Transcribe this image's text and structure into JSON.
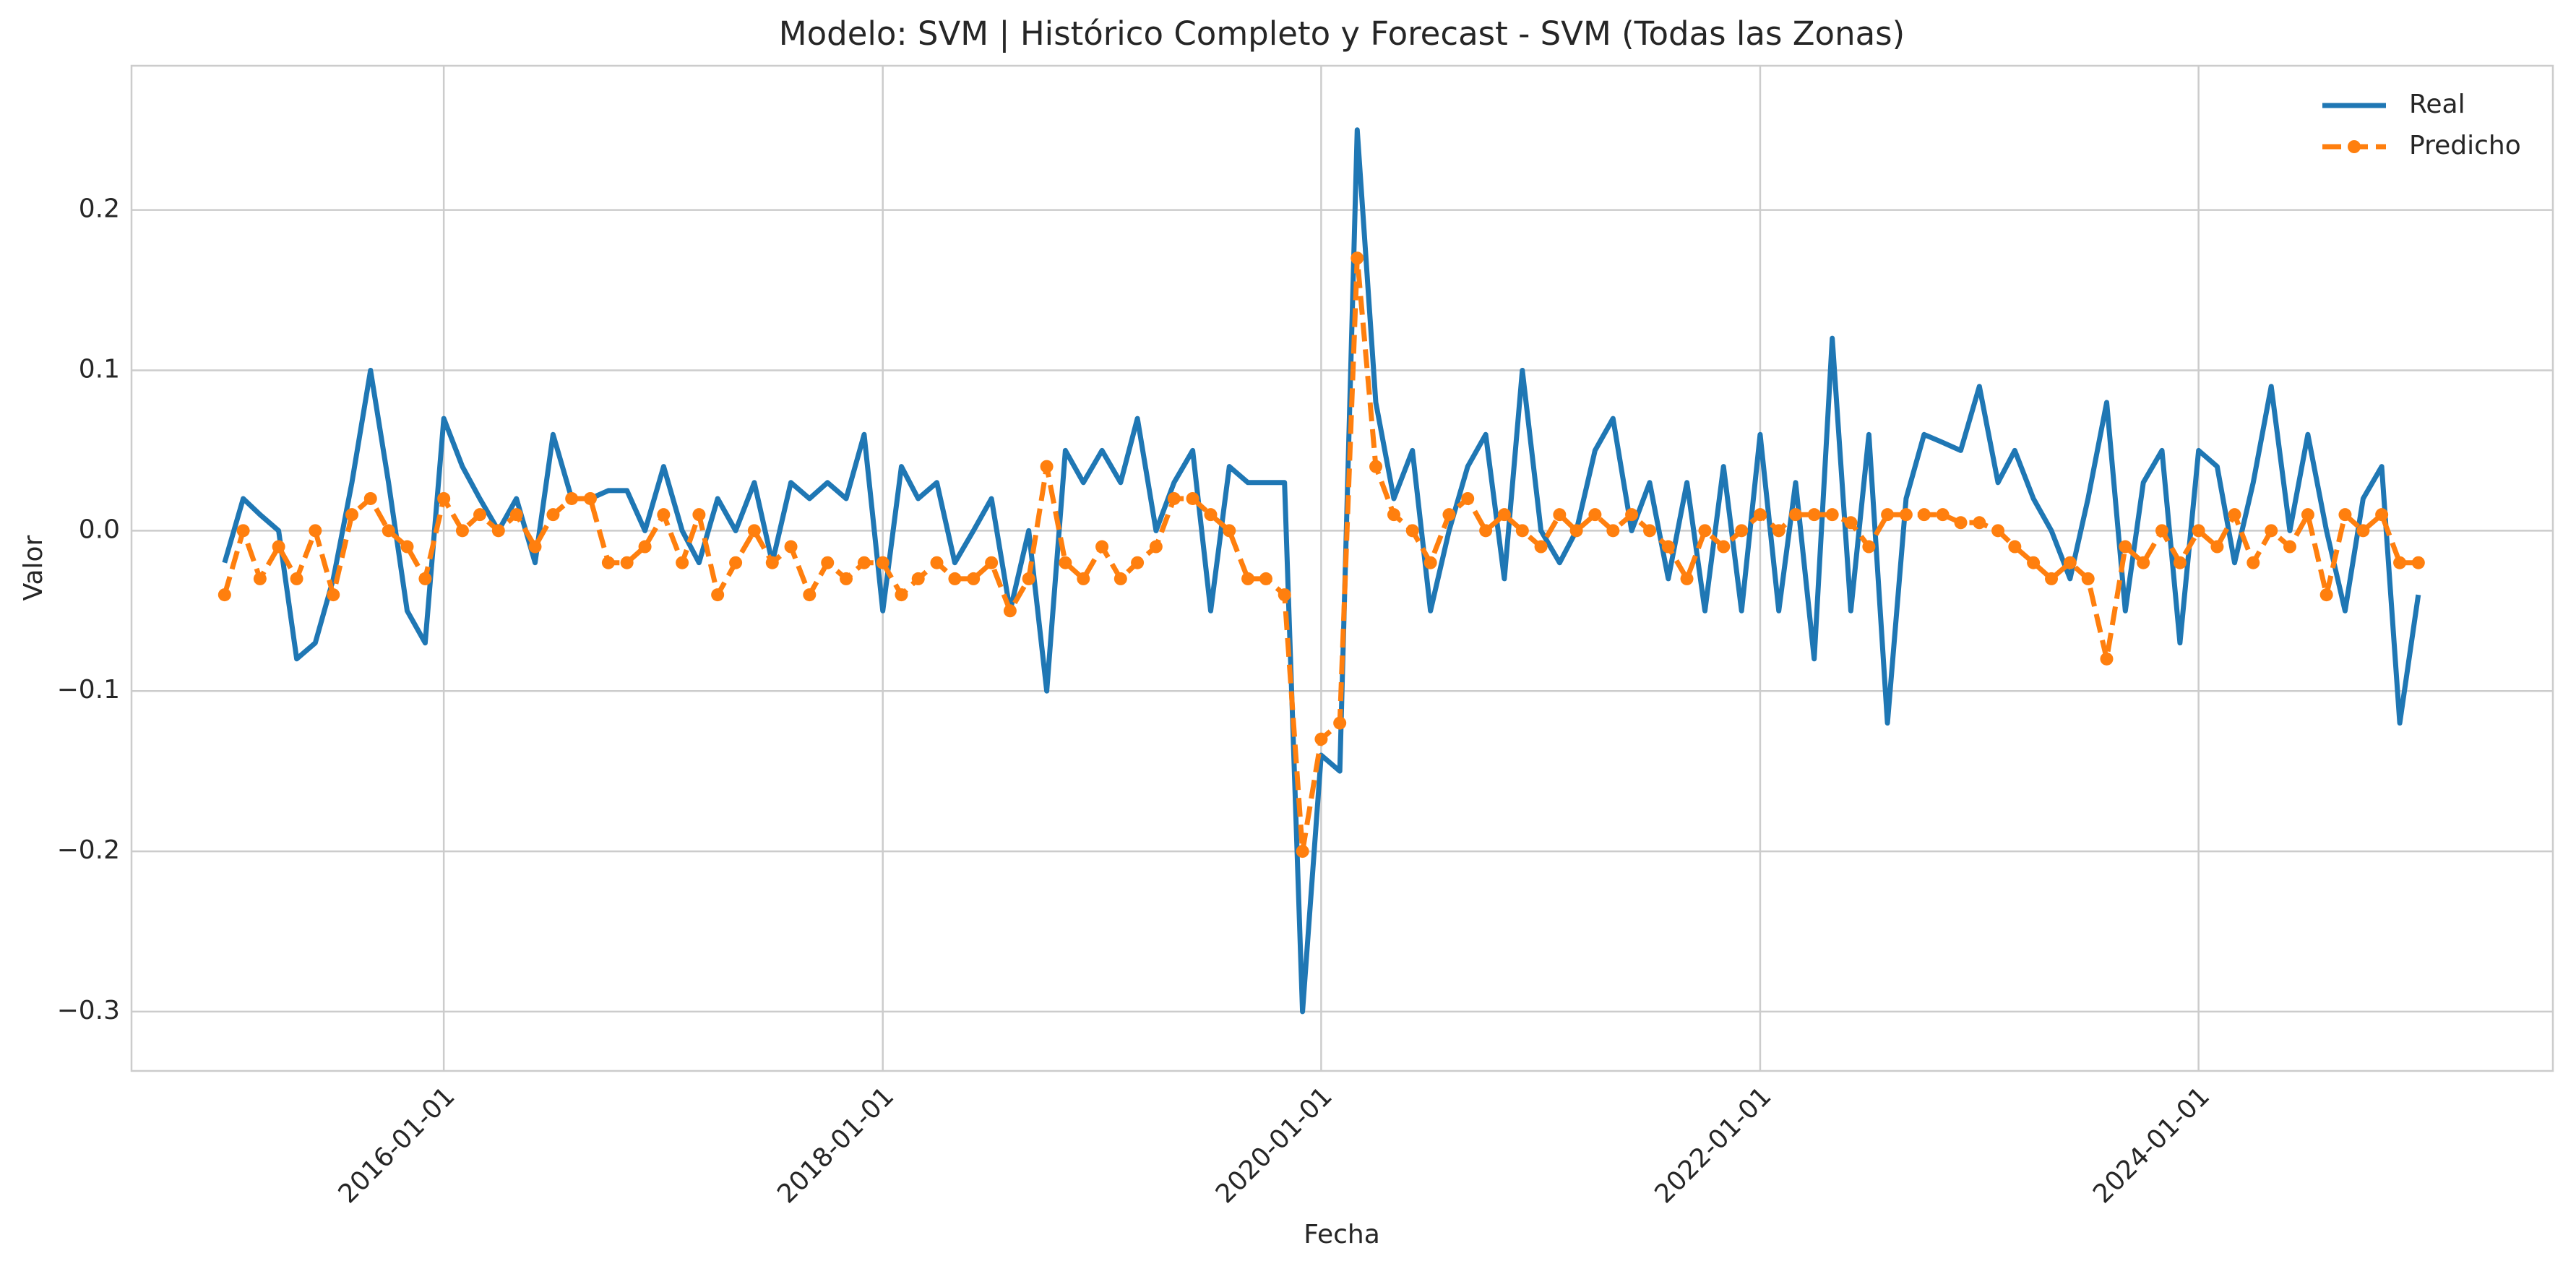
{
  "chart_data": {
    "type": "line",
    "title": "Modelo: SVM | Histórico Completo y Forecast - SVM (Todas las Zonas)",
    "x_label": "Fecha",
    "y_label": "Valor",
    "x": [
      "2015-01-01",
      "2015-02-01",
      "2015-03-01",
      "2015-04-01",
      "2015-05-01",
      "2015-06-01",
      "2015-07-01",
      "2015-08-01",
      "2015-09-01",
      "2015-10-01",
      "2015-11-01",
      "2015-12-01",
      "2016-01-01",
      "2016-02-01",
      "2016-03-01",
      "2016-04-01",
      "2016-05-01",
      "2016-06-01",
      "2016-07-01",
      "2016-08-01",
      "2016-09-01",
      "2016-10-01",
      "2016-11-01",
      "2016-12-01",
      "2017-01-01",
      "2017-02-01",
      "2017-03-01",
      "2017-04-01",
      "2017-05-01",
      "2017-06-01",
      "2017-07-01",
      "2017-08-01",
      "2017-09-01",
      "2017-10-01",
      "2017-11-01",
      "2017-12-01",
      "2018-01-01",
      "2018-02-01",
      "2018-03-01",
      "2018-04-01",
      "2018-05-01",
      "2018-06-01",
      "2018-07-01",
      "2018-08-01",
      "2018-09-01",
      "2018-10-01",
      "2018-11-01",
      "2018-12-01",
      "2019-01-01",
      "2019-02-01",
      "2019-03-01",
      "2019-04-01",
      "2019-05-01",
      "2019-06-01",
      "2019-07-01",
      "2019-08-01",
      "2019-09-01",
      "2019-10-01",
      "2019-11-01",
      "2019-12-01",
      "2020-01-01",
      "2020-02-01",
      "2020-03-01",
      "2020-04-01",
      "2020-05-01",
      "2020-06-01",
      "2020-07-01",
      "2020-08-01",
      "2020-09-01",
      "2020-10-01",
      "2020-11-01",
      "2020-12-01",
      "2021-01-01",
      "2021-02-01",
      "2021-03-01",
      "2021-04-01",
      "2021-05-01",
      "2021-06-01",
      "2021-07-01",
      "2021-08-01",
      "2021-09-01",
      "2021-10-01",
      "2021-11-01",
      "2021-12-01",
      "2022-01-01",
      "2022-02-01",
      "2022-03-01",
      "2022-04-01",
      "2022-05-01",
      "2022-06-01",
      "2022-07-01",
      "2022-08-01",
      "2022-09-01",
      "2022-10-01",
      "2022-11-01",
      "2022-12-01",
      "2023-01-01",
      "2023-02-01",
      "2023-03-01",
      "2023-04-01",
      "2023-05-01",
      "2023-06-01",
      "2023-07-01",
      "2023-08-01",
      "2023-09-01",
      "2023-10-01",
      "2023-11-01",
      "2023-12-01",
      "2024-01-01",
      "2024-02-01",
      "2024-03-01",
      "2024-04-01",
      "2024-05-01",
      "2024-06-01",
      "2024-07-01",
      "2024-08-01",
      "2024-09-01",
      "2024-10-01",
      "2024-11-01",
      "2024-12-01",
      "2025-01-01"
    ],
    "series": [
      {
        "name": "Real",
        "color": "#1f77b4",
        "style": "solid",
        "markers": false,
        "values": [
          -0.02,
          0.02,
          0.01,
          0.0,
          -0.08,
          -0.07,
          -0.03,
          0.03,
          0.1,
          0.03,
          -0.05,
          -0.07,
          0.07,
          0.04,
          0.02,
          0.0,
          0.02,
          -0.02,
          0.06,
          0.02,
          0.02,
          0.025,
          0.025,
          0.0,
          0.04,
          0.0,
          -0.02,
          0.02,
          0.0,
          0.03,
          -0.02,
          0.03,
          0.02,
          0.03,
          0.02,
          0.06,
          -0.05,
          0.04,
          0.02,
          0.03,
          -0.02,
          0.0,
          0.02,
          -0.05,
          0.0,
          -0.1,
          0.05,
          0.03,
          0.05,
          0.03,
          0.07,
          0.0,
          0.03,
          0.05,
          -0.05,
          0.04,
          0.03,
          0.03,
          0.03,
          -0.3,
          -0.14,
          -0.15,
          0.25,
          0.08,
          0.02,
          0.05,
          -0.05,
          0.0,
          0.04,
          0.06,
          -0.03,
          0.1,
          0.0,
          -0.02,
          0.0,
          0.05,
          0.07,
          0.0,
          0.03,
          -0.03,
          0.03,
          -0.05,
          0.04,
          -0.05,
          0.06,
          -0.05,
          0.03,
          -0.08,
          0.12,
          -0.05,
          0.06,
          -0.12,
          0.02,
          0.06,
          0.055,
          0.05,
          0.09,
          0.03,
          0.05,
          0.02,
          0.0,
          -0.03,
          0.02,
          0.08,
          -0.05,
          0.03,
          0.05,
          -0.07,
          0.05,
          0.04,
          -0.02,
          0.03,
          0.09,
          0.0,
          0.06,
          0.0,
          -0.05,
          0.02,
          0.04,
          -0.12,
          -0.04
        ]
      },
      {
        "name": "Predicho",
        "color": "#ff7f0e",
        "style": "dashed",
        "markers": true,
        "values": [
          -0.04,
          0.0,
          -0.03,
          -0.01,
          -0.03,
          0.0,
          -0.04,
          0.01,
          0.02,
          0.0,
          -0.01,
          -0.03,
          0.02,
          0.0,
          0.01,
          0.0,
          0.01,
          -0.01,
          0.01,
          0.02,
          0.02,
          -0.02,
          -0.02,
          -0.01,
          0.01,
          -0.02,
          0.01,
          -0.04,
          -0.02,
          0.0,
          -0.02,
          -0.01,
          -0.04,
          -0.02,
          -0.03,
          -0.02,
          -0.02,
          -0.04,
          -0.03,
          -0.02,
          -0.03,
          -0.03,
          -0.02,
          -0.05,
          -0.03,
          0.04,
          -0.02,
          -0.03,
          -0.01,
          -0.03,
          -0.02,
          -0.01,
          0.02,
          0.02,
          0.01,
          0.0,
          -0.03,
          -0.03,
          -0.04,
          -0.2,
          -0.13,
          -0.12,
          0.17,
          0.04,
          0.01,
          0.0,
          -0.02,
          0.01,
          0.02,
          0.0,
          0.01,
          0.0,
          -0.01,
          0.01,
          0.0,
          0.01,
          0.0,
          0.01,
          0.0,
          -0.01,
          -0.03,
          0.0,
          -0.01,
          0.0,
          0.01,
          0.0,
          0.01,
          0.01,
          0.01,
          0.005,
          -0.01,
          0.01,
          0.01,
          0.01,
          0.01,
          0.005,
          0.005,
          0.0,
          -0.01,
          -0.02,
          -0.03,
          -0.02,
          -0.03,
          -0.08,
          -0.01,
          -0.02,
          0.0,
          -0.02,
          0.0,
          -0.01,
          0.01,
          -0.02,
          0.0,
          -0.01,
          0.01,
          -0.04,
          0.01,
          0.0,
          0.01,
          -0.02,
          -0.02
        ]
      }
    ],
    "xlim": [
      "2014-07-30",
      "2025-08-13"
    ],
    "xticks": [
      "2016-01-01",
      "2018-01-01",
      "2020-01-01",
      "2022-01-01",
      "2024-01-01"
    ],
    "ylim": [
      -0.337,
      0.29
    ],
    "yticks": [
      0.2,
      0.1,
      {
        "value": 0.0,
        "label": "0.0"
      },
      {
        "value": -0.1,
        "label": "−0.1"
      },
      {
        "value": -0.2,
        "label": "−0.2"
      },
      {
        "value": -0.3,
        "label": "−0.3"
      }
    ],
    "grid": true,
    "legend": "upper right"
  }
}
